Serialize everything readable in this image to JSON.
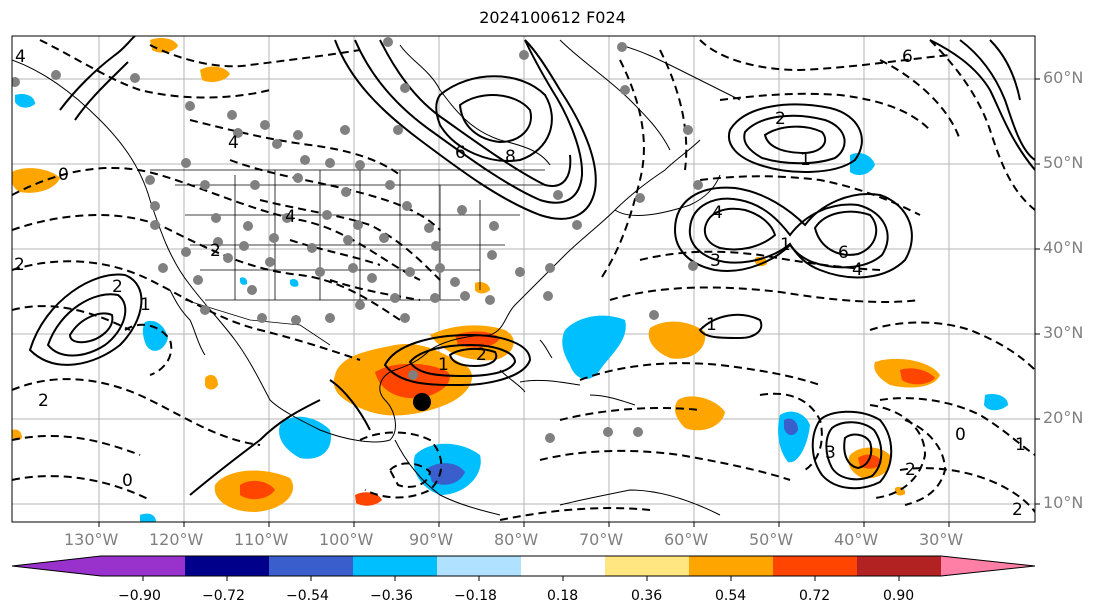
{
  "title": "2024100612 F024",
  "map": {
    "lat_labels": [
      "60°N",
      "50°N",
      "40°N",
      "30°N",
      "20°N",
      "10°N"
    ],
    "lon_labels": [
      "130°W",
      "120°W",
      "110°W",
      "100°W",
      "90°W",
      "80°W",
      "70°W",
      "60°W",
      "50°W",
      "40°W",
      "30°W"
    ],
    "contour_labels": [
      "2",
      "4",
      "6",
      "8",
      "1",
      "2",
      "4",
      "6",
      "4",
      "1",
      "2",
      "3",
      "4",
      "2",
      "1",
      "0",
      "2",
      "1",
      "3",
      "1",
      "2",
      "4",
      "6",
      "0",
      "2",
      "0",
      "2",
      "1"
    ],
    "storm_marker_color": "#000000"
  },
  "colorbar": {
    "ticks": [
      "−0.90",
      "−0.72",
      "−0.54",
      "−0.36",
      "−0.18",
      "0.18",
      "0.36",
      "0.54",
      "0.72",
      "0.90"
    ],
    "colors": [
      "#9932cc",
      "#00008b",
      "#3a5fcd",
      "#00bfff",
      "#b0e2ff",
      "#ffffff",
      "#ffe680",
      "#ffa500",
      "#ff4500",
      "#b22222",
      "#ff7fa6"
    ]
  }
}
